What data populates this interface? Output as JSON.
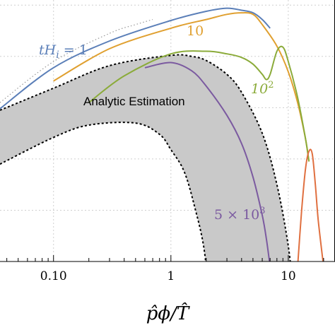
{
  "chart_data": {
    "type": "line",
    "title": "",
    "xlabel": "p̂ϕ/T̂",
    "ylabel": "",
    "x_scale": "log",
    "xlim": [
      0.035,
      25
    ],
    "xticks": [
      {
        "value": 0.1,
        "label": "0.10"
      },
      {
        "value": 1,
        "label": "1"
      },
      {
        "value": 10,
        "label": "10"
      }
    ],
    "grid": true,
    "annotation": "Analytic Estimation",
    "band": {
      "color": "#c9c9c9",
      "upper": [
        [
          0.035,
          2.95
        ],
        [
          0.1,
          3.38
        ],
        [
          0.3,
          3.82
        ],
        [
          1,
          4.02
        ],
        [
          1.5,
          4.0
        ],
        [
          2,
          3.92
        ],
        [
          3,
          3.65
        ],
        [
          4,
          3.3
        ],
        [
          6,
          2.5
        ],
        [
          8,
          1.5
        ],
        [
          10,
          0.3
        ],
        [
          11,
          -0.6
        ]
      ],
      "lower": [
        [
          0.035,
          1.9
        ],
        [
          0.1,
          2.42
        ],
        [
          0.2,
          2.66
        ],
        [
          0.5,
          2.7
        ],
        [
          0.8,
          2.48
        ],
        [
          1,
          2.18
        ],
        [
          1.3,
          1.75
        ],
        [
          1.6,
          1.05
        ],
        [
          1.9,
          0.3
        ],
        [
          2.1,
          -0.6
        ]
      ]
    },
    "series": [
      {
        "name": "tH_i = 1",
        "color": "#5b7fb8",
        "points": [
          [
            0.035,
            2.98
          ],
          [
            0.1,
            3.78
          ],
          [
            0.3,
            4.3
          ],
          [
            1,
            4.7
          ],
          [
            2,
            4.88
          ],
          [
            3,
            4.94
          ],
          [
            4,
            4.9
          ],
          [
            5,
            4.85
          ],
          [
            6,
            4.72
          ],
          [
            7,
            4.55
          ]
        ]
      },
      {
        "name": "10",
        "color": "#e0a030",
        "points": [
          [
            0.1,
            3.52
          ],
          [
            0.3,
            4.15
          ],
          [
            1,
            4.55
          ],
          [
            2,
            4.72
          ],
          [
            3,
            4.82
          ],
          [
            4,
            4.85
          ],
          [
            5,
            4.82
          ],
          [
            6,
            4.62
          ],
          [
            8,
            4.2
          ],
          [
            10,
            3.7
          ],
          [
            12,
            3.1
          ],
          [
            14,
            2.4
          ],
          [
            15,
            1.95
          ]
        ]
      },
      {
        "name": "10^2",
        "color": "#8bab3a",
        "points": [
          [
            0.2,
            3.1
          ],
          [
            0.4,
            3.62
          ],
          [
            1,
            4.05
          ],
          [
            2,
            4.1
          ],
          [
            3,
            4.05
          ],
          [
            4,
            3.98
          ],
          [
            5,
            3.85
          ],
          [
            6,
            3.65
          ],
          [
            6.5,
            3.55
          ],
          [
            7,
            3.65
          ],
          [
            8,
            4.1
          ],
          [
            9,
            4.18
          ],
          [
            10,
            3.9
          ],
          [
            12,
            3.2
          ],
          [
            14,
            2.4
          ],
          [
            15,
            1.95
          ]
        ]
      },
      {
        "name": "5 × 10^3",
        "color": "#7b5aa0",
        "points": [
          [
            0.6,
            3.78
          ],
          [
            1,
            3.88
          ],
          [
            1.5,
            3.72
          ],
          [
            2,
            3.42
          ],
          [
            3,
            2.85
          ],
          [
            4,
            2.3
          ],
          [
            5,
            1.65
          ],
          [
            6,
            0.9
          ],
          [
            6.5,
            0.45
          ],
          [
            7,
            -0.1
          ]
        ]
      },
      {
        "name": "",
        "color": "#e07040",
        "points": [
          [
            12,
            -0.1
          ],
          [
            13,
            1.0
          ],
          [
            14,
            1.8
          ],
          [
            15,
            2.15
          ],
          [
            16,
            2.1
          ],
          [
            17,
            1.5
          ],
          [
            18,
            0.8
          ],
          [
            20,
            -0.1
          ]
        ]
      },
      {
        "name": "",
        "color": "#999999",
        "dotted": true,
        "points": [
          [
            0.035,
            3.1
          ],
          [
            0.1,
            3.9
          ],
          [
            0.3,
            4.45
          ],
          [
            0.5,
            4.62
          ],
          [
            0.7,
            4.72
          ]
        ]
      }
    ],
    "series_labels": [
      {
        "text": "tH",
        "sub": "i",
        "suffix": " = 1",
        "color": "#5b7fb8"
      },
      {
        "text": "10",
        "color": "#e0a030"
      },
      {
        "text": "10",
        "sup": "2",
        "color": "#8bab3a"
      },
      {
        "text": "5 × 10",
        "sup": "3",
        "color": "#7b5aa0"
      }
    ]
  }
}
